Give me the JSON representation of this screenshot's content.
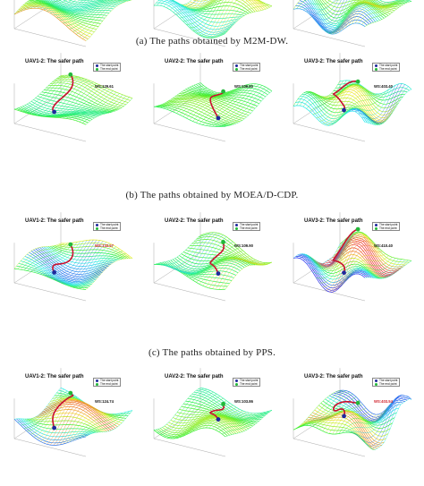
{
  "captions": [
    "(a) The paths obtained by M2M-DW.",
    "(b) The paths obtained by MOEA/D-CDP.",
    "(c) The paths obtained by PPS."
  ],
  "legend": {
    "start": "The start point",
    "end": "The end point"
  },
  "colors": {
    "path": "#c8102e",
    "start": "#1f2a9c",
    "end": "#22b83a",
    "ws_red": "#d0202a",
    "ws_black": "#111111"
  },
  "rows": [
    {
      "panels": [
        {
          "title": "",
          "ws": ""
        },
        {
          "title": "",
          "ws": ""
        },
        {
          "title": "",
          "ws": ""
        }
      ]
    },
    {
      "panels": [
        {
          "title": "UAV1-2: The safer path",
          "ws": "WS:129.61",
          "ws_color": "black"
        },
        {
          "title": "UAV2-2: The safer path",
          "ws": "WS:109.80",
          "ws_color": "black"
        },
        {
          "title": "UAV3-2: The safer path",
          "ws": "WS:403.40",
          "ws_color": "black"
        }
      ]
    },
    {
      "panels": [
        {
          "title": "UAV1-2: The safer path",
          "ws": "WS:133.57",
          "ws_color": "red"
        },
        {
          "title": "UAV2-2: The safer path",
          "ws": "WS:109.90",
          "ws_color": "black"
        },
        {
          "title": "UAV3-2: The safer path",
          "ws": "WS:410.40",
          "ws_color": "black"
        }
      ]
    },
    {
      "panels": [
        {
          "title": "UAV1-2: The safer path",
          "ws": "WS:124.74",
          "ws_color": "black"
        },
        {
          "title": "UAV2-2: The safer path",
          "ws": "WS:103.86",
          "ws_color": "black"
        },
        {
          "title": "UAV3-2: The safer path",
          "ws": "WS:403.54",
          "ws_color": "red"
        }
      ]
    }
  ]
}
